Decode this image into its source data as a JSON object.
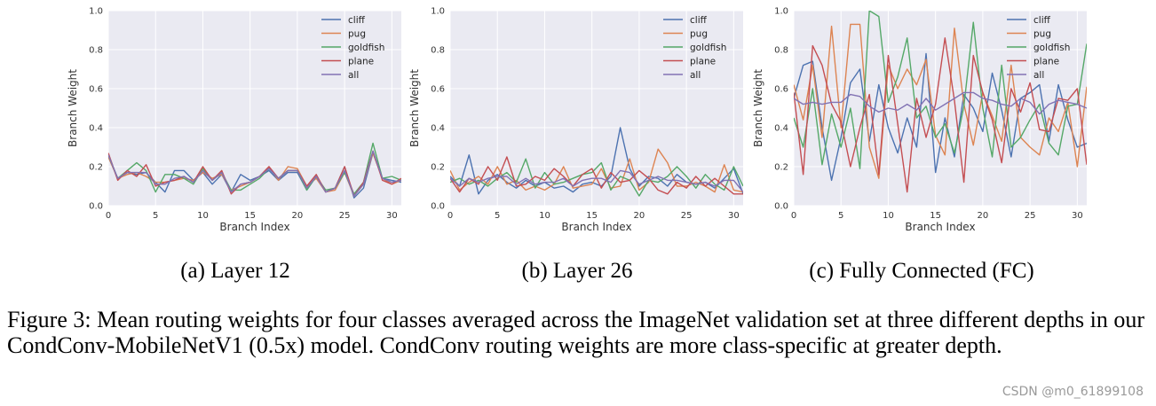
{
  "chart_data": [
    {
      "type": "line",
      "caption": "(a)  Layer 12",
      "xlabel": "Branch Index",
      "ylabel": "Branch Weight",
      "xlim": [
        0,
        31
      ],
      "ylim": [
        0,
        1.0
      ],
      "xticks": [
        0,
        5,
        10,
        15,
        20,
        25,
        30
      ],
      "yticks": [
        "0.0",
        "0.2",
        "0.4",
        "0.6",
        "0.8",
        "1.0"
      ],
      "grid": true,
      "legend": "top-right",
      "series": [
        {
          "name": "cliff",
          "color": "#4c72b0",
          "values": [
            0.25,
            0.14,
            0.17,
            0.16,
            0.17,
            0.12,
            0.07,
            0.18,
            0.18,
            0.13,
            0.17,
            0.11,
            0.16,
            0.07,
            0.16,
            0.13,
            0.15,
            0.18,
            0.13,
            0.17,
            0.17,
            0.08,
            0.15,
            0.07,
            0.09,
            0.2,
            0.04,
            0.09,
            0.27,
            0.14,
            0.13,
            0.12
          ]
        },
        {
          "name": "pug",
          "color": "#dd8452",
          "values": [
            0.25,
            0.14,
            0.16,
            0.17,
            0.15,
            0.12,
            0.12,
            0.13,
            0.14,
            0.13,
            0.17,
            0.14,
            0.16,
            0.08,
            0.1,
            0.12,
            0.15,
            0.2,
            0.13,
            0.2,
            0.19,
            0.1,
            0.14,
            0.07,
            0.08,
            0.17,
            0.05,
            0.11,
            0.27,
            0.14,
            0.11,
            0.13
          ]
        },
        {
          "name": "goldfish",
          "color": "#55a868",
          "values": [
            0.26,
            0.14,
            0.18,
            0.22,
            0.18,
            0.07,
            0.16,
            0.16,
            0.14,
            0.11,
            0.19,
            0.13,
            0.17,
            0.08,
            0.08,
            0.11,
            0.14,
            0.19,
            0.14,
            0.18,
            0.18,
            0.08,
            0.15,
            0.08,
            0.09,
            0.17,
            0.06,
            0.12,
            0.32,
            0.14,
            0.15,
            0.13
          ]
        },
        {
          "name": "plane",
          "color": "#c44e52",
          "values": [
            0.27,
            0.13,
            0.18,
            0.15,
            0.21,
            0.1,
            0.12,
            0.13,
            0.15,
            0.12,
            0.2,
            0.13,
            0.18,
            0.06,
            0.11,
            0.12,
            0.15,
            0.2,
            0.14,
            0.18,
            0.18,
            0.1,
            0.16,
            0.07,
            0.09,
            0.2,
            0.05,
            0.12,
            0.28,
            0.13,
            0.11,
            0.14
          ]
        },
        {
          "name": "all",
          "color": "#8172b3",
          "values": [
            0.26,
            0.14,
            0.17,
            0.17,
            0.17,
            0.11,
            0.11,
            0.14,
            0.15,
            0.12,
            0.18,
            0.13,
            0.17,
            0.07,
            0.11,
            0.12,
            0.15,
            0.19,
            0.14,
            0.18,
            0.18,
            0.09,
            0.15,
            0.07,
            0.09,
            0.18,
            0.05,
            0.11,
            0.28,
            0.14,
            0.12,
            0.13
          ]
        }
      ]
    },
    {
      "type": "line",
      "caption": "(b)  Layer 26",
      "xlabel": "Branch Index",
      "ylabel": "Branch Weight",
      "xlim": [
        0,
        31
      ],
      "ylim": [
        0,
        1.0
      ],
      "xticks": [
        0,
        5,
        10,
        15,
        20,
        25,
        30
      ],
      "yticks": [
        "0.0",
        "0.2",
        "0.4",
        "0.6",
        "0.8",
        "1.0"
      ],
      "grid": true,
      "legend": "top-right",
      "series": [
        {
          "name": "cliff",
          "color": "#4c72b0",
          "values": [
            0.15,
            0.1,
            0.26,
            0.06,
            0.13,
            0.16,
            0.12,
            0.09,
            0.13,
            0.1,
            0.12,
            0.09,
            0.1,
            0.07,
            0.11,
            0.12,
            0.1,
            0.15,
            0.4,
            0.19,
            0.1,
            0.15,
            0.14,
            0.1,
            0.16,
            0.12,
            0.11,
            0.12,
            0.09,
            0.14,
            0.19,
            0.06
          ]
        },
        {
          "name": "pug",
          "color": "#dd8452",
          "values": [
            0.18,
            0.08,
            0.12,
            0.15,
            0.11,
            0.2,
            0.11,
            0.13,
            0.08,
            0.1,
            0.08,
            0.11,
            0.2,
            0.09,
            0.1,
            0.11,
            0.19,
            0.09,
            0.1,
            0.24,
            0.08,
            0.12,
            0.29,
            0.22,
            0.1,
            0.1,
            0.12,
            0.1,
            0.07,
            0.21,
            0.08,
            0.07
          ]
        },
        {
          "name": "goldfish",
          "color": "#55a868",
          "values": [
            0.12,
            0.14,
            0.11,
            0.13,
            0.1,
            0.14,
            0.17,
            0.12,
            0.24,
            0.09,
            0.17,
            0.11,
            0.12,
            0.14,
            0.16,
            0.17,
            0.22,
            0.08,
            0.15,
            0.13,
            0.05,
            0.13,
            0.12,
            0.15,
            0.2,
            0.15,
            0.09,
            0.16,
            0.11,
            0.08,
            0.2,
            0.1
          ]
        },
        {
          "name": "plane",
          "color": "#c44e52",
          "values": [
            0.14,
            0.07,
            0.14,
            0.11,
            0.2,
            0.13,
            0.25,
            0.1,
            0.11,
            0.15,
            0.13,
            0.19,
            0.15,
            0.1,
            0.16,
            0.19,
            0.09,
            0.17,
            0.12,
            0.13,
            0.18,
            0.14,
            0.08,
            0.06,
            0.12,
            0.09,
            0.15,
            0.1,
            0.14,
            0.1,
            0.06,
            0.06
          ]
        },
        {
          "name": "all",
          "color": "#8172b3",
          "values": [
            0.14,
            0.1,
            0.14,
            0.12,
            0.14,
            0.15,
            0.15,
            0.11,
            0.14,
            0.11,
            0.12,
            0.12,
            0.14,
            0.1,
            0.13,
            0.14,
            0.14,
            0.12,
            0.18,
            0.17,
            0.11,
            0.13,
            0.15,
            0.13,
            0.13,
            0.12,
            0.11,
            0.12,
            0.1,
            0.13,
            0.13,
            0.07
          ]
        }
      ]
    },
    {
      "type": "line",
      "caption": "(c)  Fully Connected (FC)",
      "xlabel": "Branch Index",
      "ylabel": "Branch Weight",
      "xlim": [
        0,
        31
      ],
      "ylim": [
        0,
        1.0
      ],
      "xticks": [
        0,
        5,
        10,
        15,
        20,
        25,
        30
      ],
      "yticks": [
        "0.0",
        "0.2",
        "0.4",
        "0.6",
        "0.8",
        "1.0"
      ],
      "grid": true,
      "legend": "top-right",
      "series": [
        {
          "name": "cliff",
          "color": "#4c72b0",
          "values": [
            0.55,
            0.72,
            0.74,
            0.4,
            0.13,
            0.35,
            0.63,
            0.7,
            0.33,
            0.62,
            0.4,
            0.27,
            0.45,
            0.3,
            0.78,
            0.17,
            0.45,
            0.25,
            0.57,
            0.5,
            0.38,
            0.68,
            0.49,
            0.25,
            0.55,
            0.58,
            0.62,
            0.33,
            0.62,
            0.44,
            0.3,
            0.32
          ]
        },
        {
          "name": "pug",
          "color": "#dd8452",
          "values": [
            0.62,
            0.44,
            0.72,
            0.35,
            0.92,
            0.4,
            0.93,
            0.93,
            0.3,
            0.14,
            0.72,
            0.6,
            0.7,
            0.62,
            0.75,
            0.36,
            0.26,
            0.91,
            0.52,
            0.31,
            0.58,
            0.46,
            0.33,
            0.72,
            0.35,
            0.3,
            0.26,
            0.45,
            0.38,
            0.53,
            0.2,
            0.61
          ]
        },
        {
          "name": "goldfish",
          "color": "#55a868",
          "values": [
            0.45,
            0.3,
            0.6,
            0.21,
            0.47,
            0.3,
            0.5,
            0.19,
            1.0,
            0.97,
            0.53,
            0.66,
            0.86,
            0.45,
            0.51,
            0.35,
            0.42,
            0.27,
            0.51,
            0.94,
            0.5,
            0.25,
            0.72,
            0.3,
            0.35,
            0.44,
            0.52,
            0.32,
            0.26,
            0.51,
            0.52,
            0.83
          ]
        },
        {
          "name": "plane",
          "color": "#c44e52",
          "values": [
            0.58,
            0.16,
            0.82,
            0.72,
            0.52,
            0.43,
            0.2,
            0.4,
            0.57,
            0.16,
            0.77,
            0.42,
            0.07,
            0.55,
            0.35,
            0.52,
            0.86,
            0.54,
            0.12,
            0.77,
            0.58,
            0.44,
            0.22,
            0.6,
            0.48,
            0.63,
            0.39,
            0.38,
            0.55,
            0.54,
            0.6,
            0.21
          ]
        },
        {
          "name": "all",
          "color": "#8172b3",
          "values": [
            0.55,
            0.52,
            0.53,
            0.52,
            0.53,
            0.53,
            0.57,
            0.56,
            0.51,
            0.48,
            0.5,
            0.49,
            0.52,
            0.49,
            0.55,
            0.49,
            0.52,
            0.55,
            0.58,
            0.58,
            0.55,
            0.54,
            0.52,
            0.51,
            0.55,
            0.53,
            0.47,
            0.52,
            0.54,
            0.53,
            0.52,
            0.5
          ]
        }
      ]
    }
  ],
  "figure_caption": "Figure 3: Mean routing weights for four classes averaged across the ImageNet validation set at three different depths in our CondConv-MobileNetV1 (0.5x) model. CondConv routing weights are more class-specific at greater depth.",
  "watermark": "CSDN @m0_61899108"
}
